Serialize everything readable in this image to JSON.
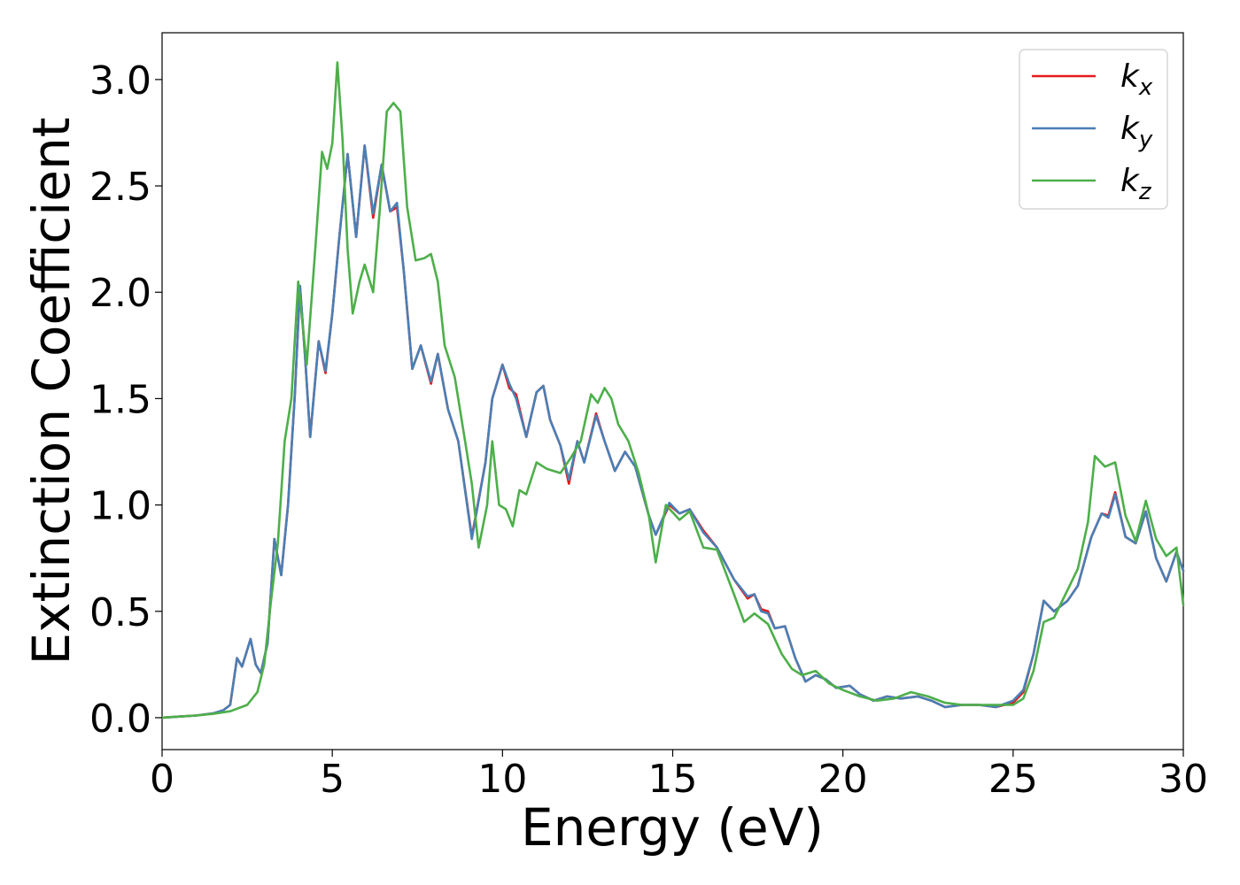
{
  "chart_data": {
    "type": "line",
    "title": "",
    "xlabel": "Energy (eV)",
    "ylabel": "Extinction Coefficient",
    "xlim": [
      0,
      30
    ],
    "ylim": [
      -0.15,
      3.22
    ],
    "xticks": [
      0,
      5,
      10,
      15,
      20,
      25,
      30
    ],
    "xtick_labels": [
      "0",
      "5",
      "10",
      "15",
      "20",
      "25",
      "30"
    ],
    "yticks": [
      0.0,
      0.5,
      1.0,
      1.5,
      2.0,
      2.5,
      3.0
    ],
    "ytick_labels": [
      "0.0",
      "0.5",
      "1.0",
      "1.5",
      "2.0",
      "2.5",
      "3.0"
    ],
    "grid": false,
    "legend_position": "top-right",
    "series": [
      {
        "name": "k_x",
        "label_base": "k",
        "label_sub": "x",
        "color": "#e41a1c",
        "points": [
          [
            0,
            0
          ],
          [
            0.5,
            0.005
          ],
          [
            1,
            0.01
          ],
          [
            1.5,
            0.02
          ],
          [
            1.8,
            0.035
          ],
          [
            2.0,
            0.06
          ],
          [
            2.2,
            0.28
          ],
          [
            2.35,
            0.24
          ],
          [
            2.6,
            0.37
          ],
          [
            2.75,
            0.25
          ],
          [
            2.9,
            0.21
          ],
          [
            3.1,
            0.35
          ],
          [
            3.3,
            0.84
          ],
          [
            3.5,
            0.67
          ],
          [
            3.7,
            1.0
          ],
          [
            3.9,
            1.52
          ],
          [
            4.05,
            2.03
          ],
          [
            4.2,
            1.7
          ],
          [
            4.35,
            1.32
          ],
          [
            4.6,
            1.77
          ],
          [
            4.8,
            1.62
          ],
          [
            5.0,
            1.9
          ],
          [
            5.2,
            2.25
          ],
          [
            5.45,
            2.65
          ],
          [
            5.7,
            2.26
          ],
          [
            5.95,
            2.69
          ],
          [
            6.2,
            2.35
          ],
          [
            6.45,
            2.6
          ],
          [
            6.7,
            2.38
          ],
          [
            6.9,
            2.4
          ],
          [
            7.1,
            2.1
          ],
          [
            7.35,
            1.64
          ],
          [
            7.6,
            1.75
          ],
          [
            7.9,
            1.57
          ],
          [
            8.1,
            1.71
          ],
          [
            8.4,
            1.45
          ],
          [
            8.7,
            1.3
          ],
          [
            9.1,
            0.85
          ],
          [
            9.5,
            1.2
          ],
          [
            9.7,
            1.5
          ],
          [
            10.0,
            1.66
          ],
          [
            10.2,
            1.55
          ],
          [
            10.4,
            1.52
          ],
          [
            10.7,
            1.32
          ],
          [
            11.0,
            1.53
          ],
          [
            11.2,
            1.56
          ],
          [
            11.4,
            1.4
          ],
          [
            11.7,
            1.28
          ],
          [
            11.95,
            1.1
          ],
          [
            12.2,
            1.3
          ],
          [
            12.4,
            1.2
          ],
          [
            12.75,
            1.43
          ],
          [
            13.0,
            1.3
          ],
          [
            13.3,
            1.16
          ],
          [
            13.6,
            1.25
          ],
          [
            13.9,
            1.18
          ],
          [
            14.3,
            0.95
          ],
          [
            14.5,
            0.86
          ],
          [
            14.9,
            1.0
          ],
          [
            15.2,
            0.96
          ],
          [
            15.5,
            0.98
          ],
          [
            15.9,
            0.88
          ],
          [
            16.3,
            0.8
          ],
          [
            16.8,
            0.65
          ],
          [
            17.2,
            0.56
          ],
          [
            17.4,
            0.58
          ],
          [
            17.6,
            0.51
          ],
          [
            17.8,
            0.5
          ],
          [
            18.0,
            0.42
          ],
          [
            18.3,
            0.43
          ],
          [
            18.6,
            0.28
          ],
          [
            18.9,
            0.17
          ],
          [
            19.2,
            0.2
          ],
          [
            19.5,
            0.18
          ],
          [
            19.8,
            0.14
          ],
          [
            20.2,
            0.15
          ],
          [
            20.5,
            0.11
          ],
          [
            20.9,
            0.08
          ],
          [
            21.3,
            0.1
          ],
          [
            21.7,
            0.09
          ],
          [
            22.2,
            0.1
          ],
          [
            22.6,
            0.08
          ],
          [
            23.0,
            0.05
          ],
          [
            23.5,
            0.06
          ],
          [
            24.0,
            0.06
          ],
          [
            24.5,
            0.05
          ],
          [
            25.0,
            0.07
          ],
          [
            25.3,
            0.12
          ],
          [
            25.6,
            0.3
          ],
          [
            25.9,
            0.55
          ],
          [
            26.2,
            0.5
          ],
          [
            26.6,
            0.55
          ],
          [
            26.9,
            0.62
          ],
          [
            27.3,
            0.85
          ],
          [
            27.6,
            0.96
          ],
          [
            27.8,
            0.95
          ],
          [
            28.0,
            1.06
          ],
          [
            28.3,
            0.85
          ],
          [
            28.6,
            0.82
          ],
          [
            28.9,
            0.97
          ],
          [
            29.2,
            0.75
          ],
          [
            29.5,
            0.64
          ],
          [
            29.8,
            0.78
          ],
          [
            30.0,
            0.69
          ]
        ]
      },
      {
        "name": "k_y",
        "label_base": "k",
        "label_sub": "y",
        "color": "#4a7fb5",
        "points": [
          [
            0,
            0
          ],
          [
            0.5,
            0.005
          ],
          [
            1,
            0.01
          ],
          [
            1.5,
            0.02
          ],
          [
            1.8,
            0.035
          ],
          [
            2.0,
            0.06
          ],
          [
            2.2,
            0.28
          ],
          [
            2.35,
            0.24
          ],
          [
            2.6,
            0.37
          ],
          [
            2.75,
            0.25
          ],
          [
            2.9,
            0.21
          ],
          [
            3.1,
            0.35
          ],
          [
            3.3,
            0.84
          ],
          [
            3.5,
            0.67
          ],
          [
            3.7,
            1.0
          ],
          [
            3.9,
            1.52
          ],
          [
            4.05,
            2.03
          ],
          [
            4.2,
            1.7
          ],
          [
            4.35,
            1.32
          ],
          [
            4.6,
            1.77
          ],
          [
            4.8,
            1.63
          ],
          [
            5.0,
            1.9
          ],
          [
            5.2,
            2.25
          ],
          [
            5.45,
            2.65
          ],
          [
            5.7,
            2.26
          ],
          [
            5.95,
            2.69
          ],
          [
            6.2,
            2.37
          ],
          [
            6.45,
            2.6
          ],
          [
            6.7,
            2.38
          ],
          [
            6.9,
            2.42
          ],
          [
            7.1,
            2.1
          ],
          [
            7.35,
            1.64
          ],
          [
            7.6,
            1.75
          ],
          [
            7.9,
            1.58
          ],
          [
            8.1,
            1.71
          ],
          [
            8.4,
            1.45
          ],
          [
            8.7,
            1.3
          ],
          [
            9.1,
            0.84
          ],
          [
            9.5,
            1.2
          ],
          [
            9.7,
            1.5
          ],
          [
            10.0,
            1.66
          ],
          [
            10.2,
            1.57
          ],
          [
            10.4,
            1.5
          ],
          [
            10.7,
            1.32
          ],
          [
            11.0,
            1.53
          ],
          [
            11.2,
            1.56
          ],
          [
            11.4,
            1.4
          ],
          [
            11.7,
            1.28
          ],
          [
            11.95,
            1.12
          ],
          [
            12.2,
            1.3
          ],
          [
            12.4,
            1.2
          ],
          [
            12.75,
            1.42
          ],
          [
            13.0,
            1.3
          ],
          [
            13.3,
            1.16
          ],
          [
            13.6,
            1.25
          ],
          [
            13.9,
            1.18
          ],
          [
            14.3,
            0.95
          ],
          [
            14.5,
            0.86
          ],
          [
            14.9,
            1.01
          ],
          [
            15.2,
            0.96
          ],
          [
            15.5,
            0.98
          ],
          [
            15.9,
            0.87
          ],
          [
            16.3,
            0.8
          ],
          [
            16.8,
            0.65
          ],
          [
            17.2,
            0.57
          ],
          [
            17.4,
            0.58
          ],
          [
            17.6,
            0.5
          ],
          [
            17.8,
            0.49
          ],
          [
            18.0,
            0.42
          ],
          [
            18.3,
            0.43
          ],
          [
            18.6,
            0.28
          ],
          [
            18.9,
            0.17
          ],
          [
            19.2,
            0.2
          ],
          [
            19.5,
            0.18
          ],
          [
            19.8,
            0.14
          ],
          [
            20.2,
            0.15
          ],
          [
            20.5,
            0.11
          ],
          [
            20.9,
            0.08
          ],
          [
            21.3,
            0.1
          ],
          [
            21.7,
            0.09
          ],
          [
            22.2,
            0.1
          ],
          [
            22.6,
            0.08
          ],
          [
            23.0,
            0.05
          ],
          [
            23.5,
            0.06
          ],
          [
            24.0,
            0.06
          ],
          [
            24.5,
            0.05
          ],
          [
            25.0,
            0.08
          ],
          [
            25.3,
            0.13
          ],
          [
            25.6,
            0.3
          ],
          [
            25.9,
            0.55
          ],
          [
            26.2,
            0.5
          ],
          [
            26.6,
            0.55
          ],
          [
            26.9,
            0.62
          ],
          [
            27.3,
            0.85
          ],
          [
            27.6,
            0.96
          ],
          [
            27.8,
            0.94
          ],
          [
            28.0,
            1.05
          ],
          [
            28.3,
            0.85
          ],
          [
            28.6,
            0.82
          ],
          [
            28.9,
            0.97
          ],
          [
            29.2,
            0.75
          ],
          [
            29.5,
            0.64
          ],
          [
            29.8,
            0.78
          ],
          [
            30.0,
            0.69
          ]
        ]
      },
      {
        "name": "k_z",
        "label_base": "k",
        "label_sub": "z",
        "color": "#4daf4a",
        "points": [
          [
            0,
            0
          ],
          [
            0.5,
            0.005
          ],
          [
            1,
            0.01
          ],
          [
            1.5,
            0.018
          ],
          [
            2.0,
            0.03
          ],
          [
            2.5,
            0.06
          ],
          [
            2.8,
            0.12
          ],
          [
            3.0,
            0.25
          ],
          [
            3.2,
            0.55
          ],
          [
            3.4,
            0.82
          ],
          [
            3.6,
            1.3
          ],
          [
            3.8,
            1.5
          ],
          [
            4.0,
            2.05
          ],
          [
            4.25,
            1.66
          ],
          [
            4.5,
            2.2
          ],
          [
            4.7,
            2.66
          ],
          [
            4.85,
            2.58
          ],
          [
            5.0,
            2.7
          ],
          [
            5.15,
            3.08
          ],
          [
            5.3,
            2.72
          ],
          [
            5.45,
            2.2
          ],
          [
            5.6,
            1.9
          ],
          [
            5.8,
            2.05
          ],
          [
            5.95,
            2.13
          ],
          [
            6.2,
            2.0
          ],
          [
            6.4,
            2.4
          ],
          [
            6.6,
            2.85
          ],
          [
            6.8,
            2.89
          ],
          [
            7.0,
            2.85
          ],
          [
            7.2,
            2.4
          ],
          [
            7.45,
            2.15
          ],
          [
            7.7,
            2.16
          ],
          [
            7.9,
            2.18
          ],
          [
            8.1,
            2.05
          ],
          [
            8.3,
            1.75
          ],
          [
            8.6,
            1.6
          ],
          [
            8.9,
            1.3
          ],
          [
            9.1,
            1.1
          ],
          [
            9.3,
            0.8
          ],
          [
            9.55,
            1.0
          ],
          [
            9.7,
            1.3
          ],
          [
            9.9,
            1.0
          ],
          [
            10.1,
            0.98
          ],
          [
            10.3,
            0.9
          ],
          [
            10.5,
            1.07
          ],
          [
            10.7,
            1.05
          ],
          [
            11.0,
            1.2
          ],
          [
            11.3,
            1.17
          ],
          [
            11.7,
            1.15
          ],
          [
            12.0,
            1.22
          ],
          [
            12.3,
            1.3
          ],
          [
            12.6,
            1.52
          ],
          [
            12.8,
            1.48
          ],
          [
            13.0,
            1.55
          ],
          [
            13.2,
            1.5
          ],
          [
            13.4,
            1.38
          ],
          [
            13.7,
            1.3
          ],
          [
            14.0,
            1.15
          ],
          [
            14.3,
            0.95
          ],
          [
            14.5,
            0.73
          ],
          [
            14.8,
            1.0
          ],
          [
            15.2,
            0.93
          ],
          [
            15.5,
            0.97
          ],
          [
            15.9,
            0.8
          ],
          [
            16.3,
            0.79
          ],
          [
            16.8,
            0.58
          ],
          [
            17.1,
            0.45
          ],
          [
            17.4,
            0.49
          ],
          [
            17.8,
            0.44
          ],
          [
            18.2,
            0.3
          ],
          [
            18.5,
            0.23
          ],
          [
            18.8,
            0.2
          ],
          [
            19.2,
            0.22
          ],
          [
            19.6,
            0.16
          ],
          [
            20.0,
            0.13
          ],
          [
            20.5,
            0.1
          ],
          [
            21.0,
            0.08
          ],
          [
            21.5,
            0.09
          ],
          [
            22.0,
            0.12
          ],
          [
            22.5,
            0.1
          ],
          [
            23.0,
            0.07
          ],
          [
            23.5,
            0.06
          ],
          [
            24.0,
            0.06
          ],
          [
            24.5,
            0.06
          ],
          [
            25.0,
            0.06
          ],
          [
            25.3,
            0.09
          ],
          [
            25.6,
            0.22
          ],
          [
            25.9,
            0.45
          ],
          [
            26.2,
            0.47
          ],
          [
            26.6,
            0.6
          ],
          [
            26.9,
            0.7
          ],
          [
            27.2,
            0.92
          ],
          [
            27.4,
            1.23
          ],
          [
            27.7,
            1.18
          ],
          [
            28.0,
            1.2
          ],
          [
            28.3,
            0.95
          ],
          [
            28.6,
            0.83
          ],
          [
            28.9,
            1.02
          ],
          [
            29.2,
            0.84
          ],
          [
            29.5,
            0.76
          ],
          [
            29.8,
            0.8
          ],
          [
            30.0,
            0.53
          ]
        ]
      }
    ]
  }
}
